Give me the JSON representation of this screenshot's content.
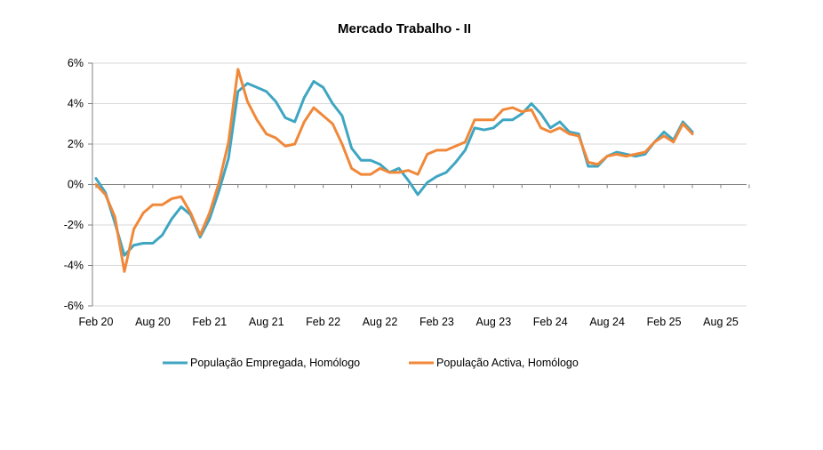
{
  "chart_data": {
    "type": "line",
    "title": "Mercado Trabalho  -  II",
    "xlabel": "",
    "ylabel": "",
    "x": [
      "2020-02",
      "2020-03",
      "2020-04",
      "2020-05",
      "2020-06",
      "2020-07",
      "2020-08",
      "2020-09",
      "2020-10",
      "2020-11",
      "2020-12",
      "2021-01",
      "2021-02",
      "2021-03",
      "2021-04",
      "2021-05",
      "2021-06",
      "2021-07",
      "2021-08",
      "2021-09",
      "2021-10",
      "2021-11",
      "2021-12",
      "2022-01",
      "2022-02",
      "2022-03",
      "2022-04",
      "2022-05",
      "2022-06",
      "2022-07",
      "2022-08",
      "2022-09",
      "2022-10",
      "2022-11",
      "2022-12",
      "2023-01",
      "2023-02",
      "2023-03",
      "2023-04",
      "2023-05",
      "2023-06",
      "2023-07",
      "2023-08",
      "2023-09",
      "2023-10",
      "2023-11",
      "2023-12",
      "2024-01",
      "2024-02",
      "2024-03",
      "2024-04",
      "2024-05",
      "2024-06",
      "2024-07",
      "2024-08",
      "2024-09",
      "2024-10",
      "2024-11",
      "2024-12",
      "2025-01",
      "2025-02",
      "2025-03",
      "2025-04",
      "2025-05"
    ],
    "x_ticks": [
      "Feb 20",
      "Aug 20",
      "Feb 21",
      "Aug 21",
      "Feb 22",
      "Aug 22",
      "Feb 23",
      "Aug 23",
      "Feb 24",
      "Aug 24",
      "Feb 25",
      "Aug 25"
    ],
    "x_tick_dates": [
      "2020-02",
      "2020-08",
      "2021-02",
      "2021-08",
      "2022-02",
      "2022-08",
      "2023-02",
      "2023-08",
      "2024-02",
      "2024-08",
      "2025-02",
      "2025-08"
    ],
    "y_ticks": [
      "6%",
      "4%",
      "2%",
      "0%",
      "-2%",
      "-4%",
      "-6%"
    ],
    "ylim": [
      -6,
      6
    ],
    "y_unit": "%",
    "grid": "horizontal",
    "legend_position": "bottom",
    "series": [
      {
        "name": "População Empregada, Homólogo",
        "color": "#3fa6c2",
        "values": [
          0.3,
          -0.4,
          -1.9,
          -3.5,
          -3.0,
          -2.9,
          -2.9,
          -2.5,
          -1.7,
          -1.1,
          -1.5,
          -2.6,
          -1.7,
          -0.3,
          1.3,
          4.6,
          5.0,
          4.8,
          4.6,
          4.1,
          3.3,
          3.1,
          4.3,
          5.1,
          4.8,
          4.0,
          3.4,
          1.8,
          1.2,
          1.2,
          1.0,
          0.6,
          0.8,
          0.2,
          -0.5,
          0.1,
          0.4,
          0.6,
          1.1,
          1.7,
          2.8,
          2.7,
          2.8,
          3.2,
          3.2,
          3.5,
          4.0,
          3.5,
          2.8,
          3.1,
          2.6,
          2.5,
          0.9,
          0.9,
          1.4,
          1.6,
          1.5,
          1.4,
          1.5,
          2.1,
          2.6,
          2.2,
          3.1,
          2.6
        ]
      },
      {
        "name": "População Activa, Homólogo",
        "color": "#f0883a",
        "values": [
          0.0,
          -0.5,
          -1.6,
          -4.3,
          -2.2,
          -1.4,
          -1.0,
          -1.0,
          -0.7,
          -0.6,
          -1.4,
          -2.5,
          -1.4,
          0.1,
          2.1,
          5.7,
          4.1,
          3.2,
          2.5,
          2.3,
          1.9,
          2.0,
          3.1,
          3.8,
          3.4,
          3.0,
          2.0,
          0.8,
          0.5,
          0.5,
          0.8,
          0.6,
          0.6,
          0.7,
          0.5,
          1.5,
          1.7,
          1.7,
          1.9,
          2.1,
          3.2,
          3.2,
          3.2,
          3.7,
          3.8,
          3.6,
          3.7,
          2.8,
          2.6,
          2.8,
          2.5,
          2.4,
          1.1,
          1.0,
          1.4,
          1.5,
          1.4,
          1.5,
          1.6,
          2.1,
          2.4,
          2.1,
          3.0,
          2.5
        ]
      }
    ]
  }
}
